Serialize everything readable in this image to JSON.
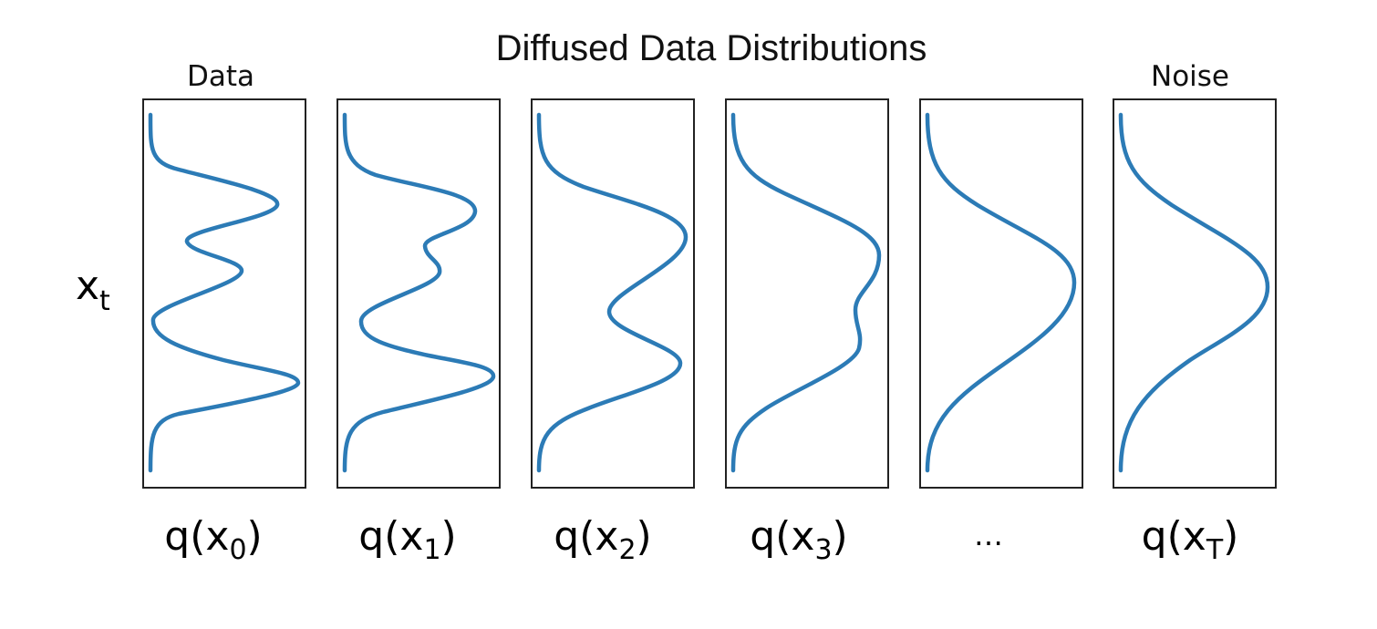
{
  "title": "Diffused Data Distributions",
  "axis_label": {
    "main": "x",
    "sub": "t"
  },
  "curve_color": "#2c7bb6",
  "panels": [
    {
      "top_label": "Data",
      "label": {
        "pre": "q(x",
        "sub": "0",
        "post": ")"
      }
    },
    {
      "top_label": "",
      "label": {
        "pre": "q(x",
        "sub": "1",
        "post": ")"
      }
    },
    {
      "top_label": "",
      "label": {
        "pre": "q(x",
        "sub": "2",
        "post": ")"
      }
    },
    {
      "top_label": "",
      "label": {
        "pre": "q(x",
        "sub": "3",
        "post": ")"
      }
    },
    {
      "top_label": "",
      "label": {
        "pre": "…",
        "sub": "",
        "post": ""
      }
    },
    {
      "top_label": "Noise",
      "label": {
        "pre": "q(x",
        "sub": "T",
        "post": ")"
      }
    }
  ]
}
